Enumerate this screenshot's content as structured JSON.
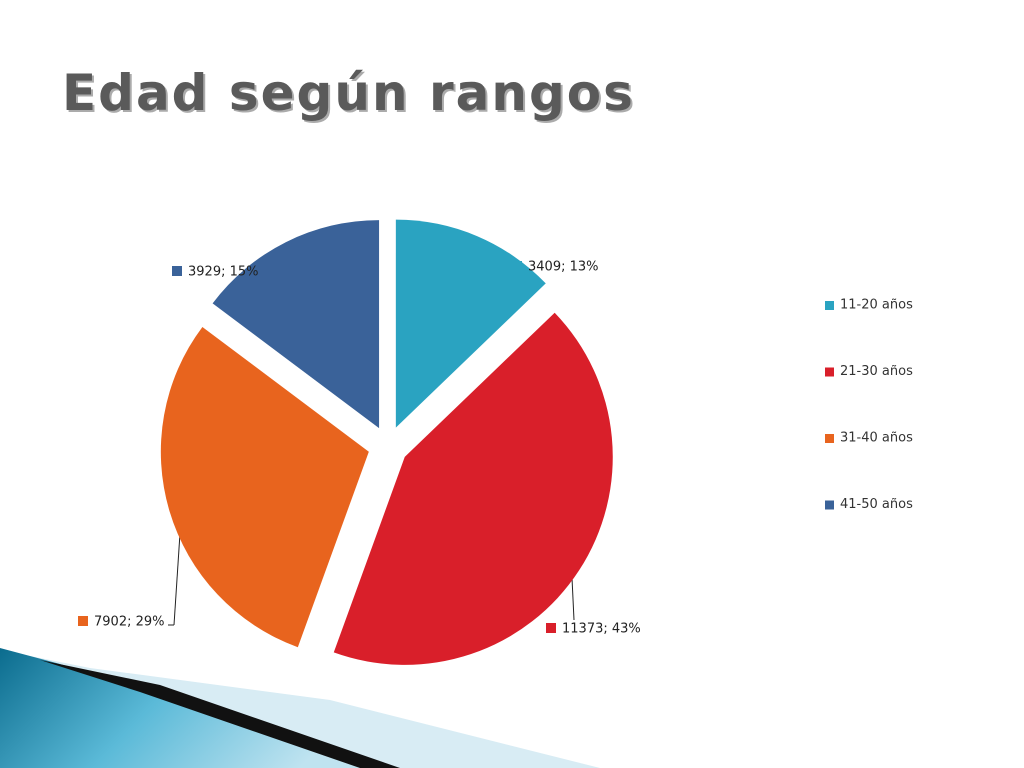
{
  "chart_data": {
    "type": "pie",
    "title": "Edad según rangos",
    "categories": [
      "11-20 años",
      "21-30 años",
      "31-40 años",
      "41-50 años"
    ],
    "values": [
      3409,
      11373,
      7902,
      3929
    ],
    "value_labels": [
      "3409; 13%",
      "11373; 43%",
      "7902; 29%",
      "3929; 15%"
    ],
    "colors": [
      "#2aa3c1",
      "#d91f2a",
      "#e8641e",
      "#3a6299"
    ],
    "legend": "right"
  }
}
